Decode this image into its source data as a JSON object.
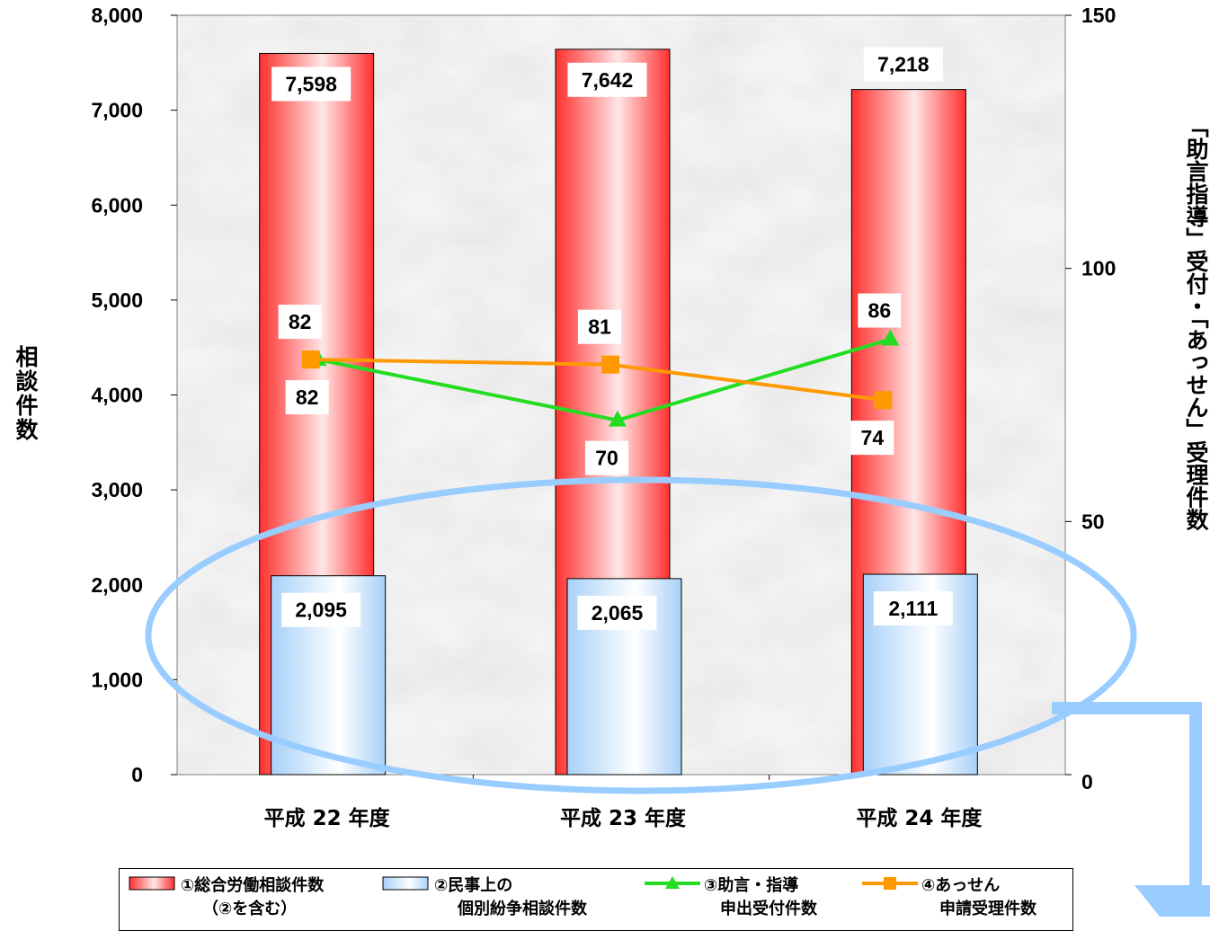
{
  "chart_data": {
    "type": "bar+line",
    "categories": [
      "平成 22 年度",
      "平成 23 年度",
      "平成 24 年度"
    ],
    "bar_series": [
      {
        "name": "①総合労働相談件数 (②を含む)",
        "values": [
          7598,
          7642,
          7218
        ],
        "labels": [
          "7,598",
          "7,642",
          "7,218"
        ],
        "color": "#ff3333"
      },
      {
        "name": "②民事上の 個別紛争相談件数",
        "values": [
          2095,
          2065,
          2111
        ],
        "labels": [
          "2,095",
          "2,065",
          "2,111"
        ],
        "color": "#a8d0f8"
      }
    ],
    "line_series": [
      {
        "name": "③助言・指導 申出受付件数",
        "values": [
          82,
          70,
          86
        ],
        "labels": [
          "82",
          "70",
          "86"
        ],
        "color": "#22dd22",
        "marker": "triangle"
      },
      {
        "name": "④あっせん 申請受理件数",
        "values": [
          82,
          81,
          74
        ],
        "labels": [
          "82",
          "81",
          "74"
        ],
        "color": "#ff9900",
        "marker": "square"
      }
    ],
    "ylim_left": [
      0,
      8000
    ],
    "yticks_left": [
      0,
      1000,
      2000,
      3000,
      4000,
      5000,
      6000,
      7000,
      8000
    ],
    "ytick_labels_left": [
      "0",
      "1,000",
      "2,000",
      "3,000",
      "4,000",
      "5,000",
      "6,000",
      "7,000",
      "8,000"
    ],
    "ylim_right": [
      0,
      150
    ],
    "yticks_right": [
      0,
      50,
      100,
      150
    ],
    "ytick_labels_right": [
      "0",
      "50",
      "100",
      "150"
    ],
    "ylabel_left": "相談件数",
    "ylabel_right": "「助言指導」受付・「あっせん」受理件数",
    "legend": {
      "placement": "bottom",
      "items": [
        {
          "line1": "①総合労働相談件数",
          "line2": "（②を含む）"
        },
        {
          "line1": "②民事上の",
          "line2": "個別紛争相談件数"
        },
        {
          "line1": "③助言・指導",
          "line2": "申出受付件数"
        },
        {
          "line1": "④あっせん",
          "line2": "申請受理件数"
        }
      ]
    },
    "highlight_ellipse_color": "#99ccff",
    "arrow_color": "#99ccff"
  }
}
